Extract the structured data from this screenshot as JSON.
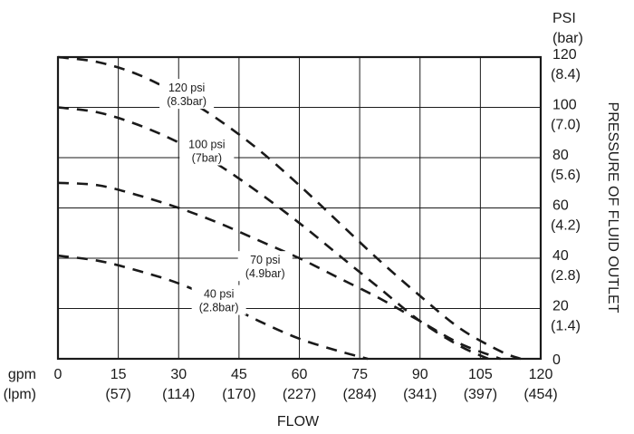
{
  "chart_data": {
    "type": "line",
    "x_primary_unit": "gpm",
    "x_secondary_unit": "(lpm)",
    "xlabel": "FLOW",
    "y_primary_unit": "PSI",
    "y_secondary_unit": "(bar)",
    "ylabel": "PRESSURE OF FLUID OUTLET",
    "xlim": [
      0,
      120
    ],
    "ylim": [
      0,
      120
    ],
    "grid": true,
    "x_ticks": [
      {
        "value": 0,
        "label": "0",
        "sub": ""
      },
      {
        "value": 15,
        "label": "15",
        "sub": "(57)"
      },
      {
        "value": 30,
        "label": "30",
        "sub": "(114)"
      },
      {
        "value": 45,
        "label": "45",
        "sub": "(170)"
      },
      {
        "value": 60,
        "label": "60",
        "sub": "(227)"
      },
      {
        "value": 75,
        "label": "75",
        "sub": "(284)"
      },
      {
        "value": 90,
        "label": "90",
        "sub": "(341)"
      },
      {
        "value": 105,
        "label": "105",
        "sub": "(397)"
      },
      {
        "value": 120,
        "label": "120",
        "sub": "(454)"
      }
    ],
    "y_ticks": [
      {
        "value": 0,
        "label": "0",
        "sub": ""
      },
      {
        "value": 20,
        "label": "20",
        "sub": "(1.4)"
      },
      {
        "value": 40,
        "label": "40",
        "sub": "(2.8)"
      },
      {
        "value": 60,
        "label": "60",
        "sub": "(4.2)"
      },
      {
        "value": 80,
        "label": "80",
        "sub": "(5.6)"
      },
      {
        "value": 100,
        "label": "100",
        "sub": "(7.0)"
      },
      {
        "value": 120,
        "label": "120",
        "sub": "(8.4)"
      }
    ],
    "series": [
      {
        "name": "120 psi",
        "sub": "(8.3bar)",
        "label_at": [
          32,
          107
        ],
        "x": [
          0,
          10,
          20,
          30,
          40,
          50,
          60,
          70,
          80,
          90,
          100,
          110,
          115
        ],
        "y": [
          120,
          118,
          113,
          105,
          95,
          83,
          69,
          54,
          39,
          25,
          12,
          3,
          0
        ]
      },
      {
        "name": "100 psi",
        "sub": "(7bar)",
        "label_at": [
          37,
          84.5
        ],
        "x": [
          0,
          10,
          20,
          30,
          40,
          50,
          60,
          70,
          80,
          90,
          100,
          107
        ],
        "y": [
          100,
          98,
          93,
          86,
          77,
          66,
          54,
          41,
          28,
          15,
          5,
          0
        ]
      },
      {
        "name": "70 psi",
        "sub": "(4.9bar)",
        "label_at": [
          51.5,
          38.5
        ],
        "x": [
          0,
          10,
          20,
          30,
          40,
          50,
          60,
          70,
          80,
          90,
          100,
          110
        ],
        "y": [
          70,
          69,
          65,
          60,
          54,
          47,
          40,
          32,
          24,
          15,
          6,
          0
        ]
      },
      {
        "name": "40 psi",
        "sub": "(2.8bar)",
        "label_at": [
          40,
          25
        ],
        "x": [
          0,
          10,
          20,
          30,
          40,
          50,
          60,
          70,
          77
        ],
        "y": [
          41,
          39,
          35,
          30,
          23,
          15,
          8,
          3,
          0
        ]
      }
    ]
  }
}
